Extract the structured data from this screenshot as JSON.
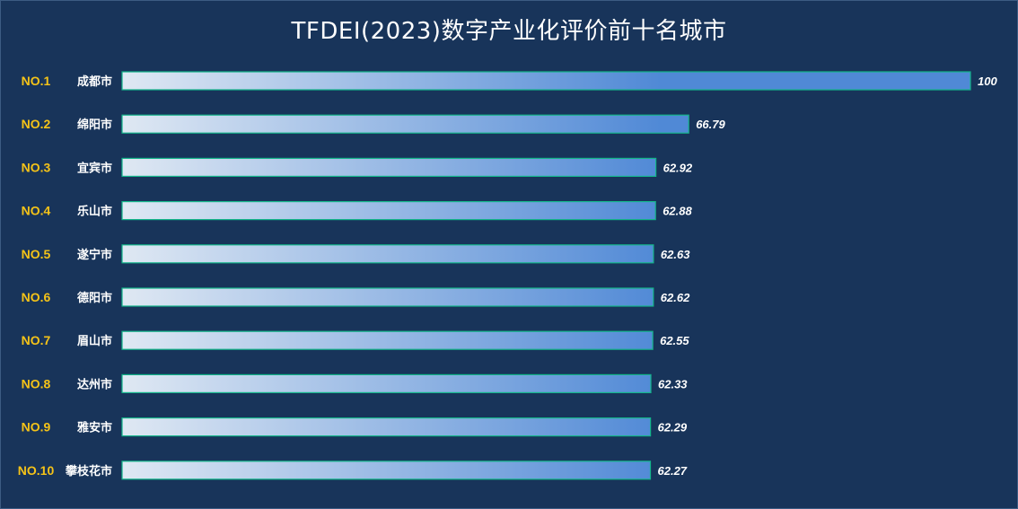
{
  "title": "TFDEI(2023)数字产业化评价前十名城市",
  "colors": {
    "background": "#18345a",
    "bar_start": "#dfe8f3",
    "bar_end": "#5089d6",
    "bar_border": "#13b58a",
    "rank_text": "#f5c318",
    "label_text": "#ffffff"
  },
  "chart_data": {
    "type": "bar",
    "orientation": "horizontal",
    "title": "TFDEI(2023)数字产业化评价前十名城市",
    "ranks": [
      "NO.1",
      "NO.2",
      "NO.3",
      "NO.4",
      "NO.5",
      "NO.6",
      "NO.7",
      "NO.8",
      "NO.9",
      "NO.10"
    ],
    "categories": [
      "成都市",
      "绵阳市",
      "宜宾市",
      "乐山市",
      "遂宁市",
      "德阳市",
      "眉山市",
      "达州市",
      "雅安市",
      "攀枝花市"
    ],
    "values": [
      100,
      66.79,
      62.92,
      62.88,
      62.63,
      62.62,
      62.55,
      62.33,
      62.29,
      62.27
    ],
    "value_labels": [
      "100",
      "66.79",
      "62.92",
      "62.88",
      "62.63",
      "62.62",
      "62.55",
      "62.33",
      "62.29",
      "62.27"
    ],
    "xlim": [
      0,
      100
    ],
    "grid": false,
    "legend": "none"
  }
}
